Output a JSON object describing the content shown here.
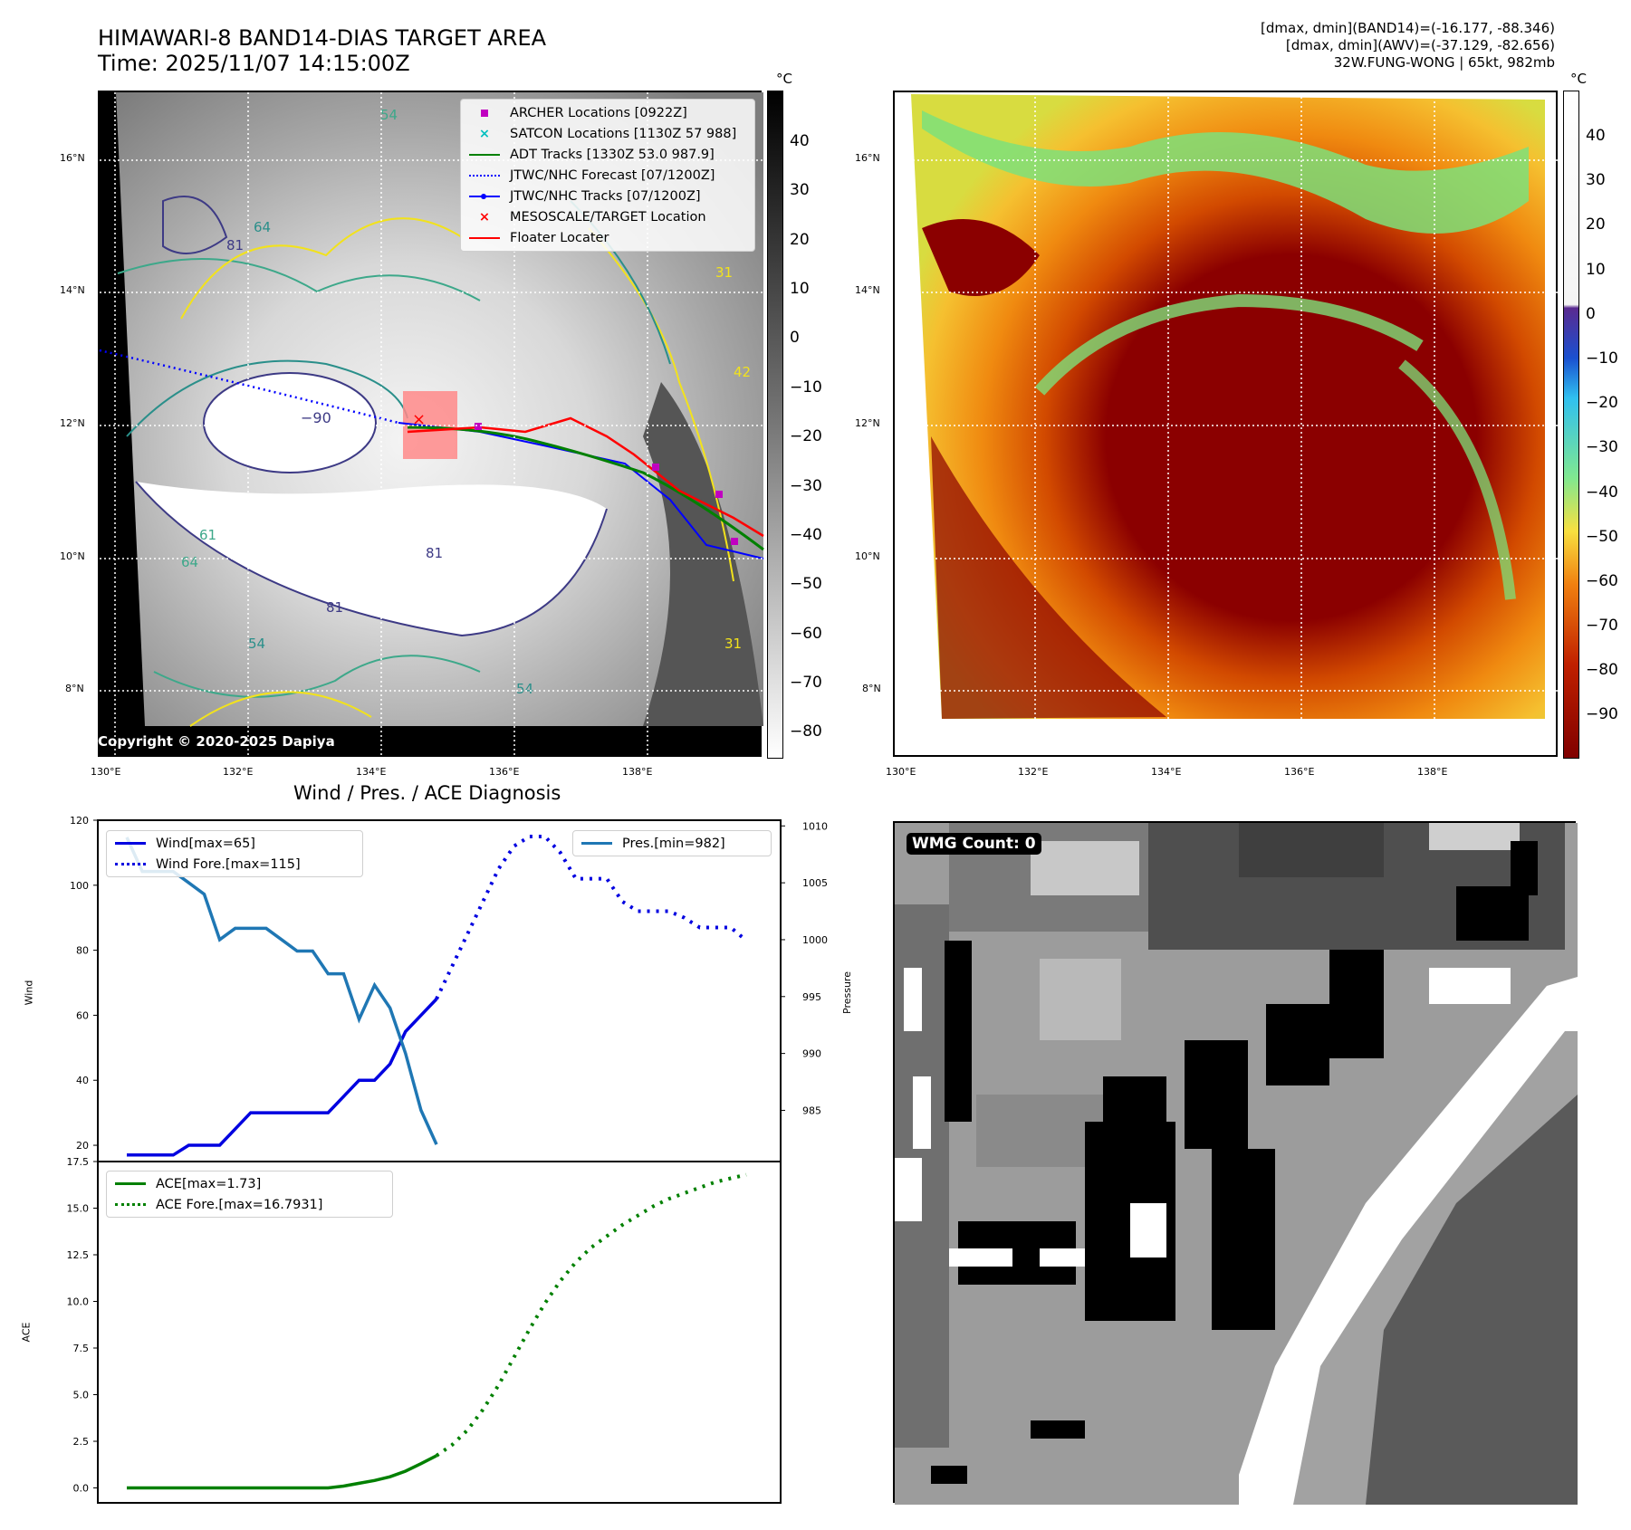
{
  "header": {
    "title_line1": "HIMAWARI-8 BAND14-DIAS TARGET AREA",
    "title_line2": "Time: 2025/11/07 14:15:00Z",
    "stats_line1": "[dmax, dmin](BAND14)=(-16.177, -88.346)",
    "stats_line2": "[dmax, dmin](AWV)=(-37.129, -82.656)",
    "stats_line3": "32W.FUNG-WONG | 65kt, 982mb"
  },
  "map_ir": {
    "lat_ticks": [
      "16°N",
      "14°N",
      "12°N",
      "10°N",
      "8°N"
    ],
    "lon_ticks": [
      "130°E",
      "132°E",
      "134°E",
      "136°E",
      "138°E"
    ],
    "colorbar_unit": "°C",
    "colorbar_ticks": [
      "40",
      "30",
      "20",
      "10",
      "0",
      "−10",
      "−20",
      "−30",
      "−40",
      "−50",
      "−60",
      "−70",
      "−80"
    ],
    "copyright": "Copyright © 2020-2025 Dapiya",
    "contour_labels": [
      "54",
      "64",
      "81",
      "31",
      "−90",
      "54",
      "61",
      "64",
      "81",
      "81",
      "31",
      "54",
      "42"
    ],
    "legend": [
      {
        "label": "ARCHER Locations [0922Z]",
        "color": "#c000c0",
        "marker": "square"
      },
      {
        "label": "SATCON Locations [1130Z 57 988]",
        "color": "#00bfbf",
        "marker": "x"
      },
      {
        "label": "ADT Tracks [1330Z 53.0 987.9]",
        "color": "#008000",
        "marker": "line"
      },
      {
        "label": "JTWC/NHC Forecast [07/1200Z]",
        "color": "#0000ff",
        "marker": "dotted"
      },
      {
        "label": "JTWC/NHC Tracks [07/1200Z]",
        "color": "#0000ff",
        "marker": "line-dot"
      },
      {
        "label": "MESOSCALE/TARGET Location",
        "color": "#ff0000",
        "marker": "x"
      },
      {
        "label": "Floater Locater",
        "color": "#ff0000",
        "marker": "line"
      }
    ]
  },
  "map_awv": {
    "lat_ticks": [
      "16°N",
      "14°N",
      "12°N",
      "10°N",
      "8°N"
    ],
    "lon_ticks": [
      "130°E",
      "132°E",
      "134°E",
      "136°E",
      "138°E"
    ],
    "colorbar_unit": "°C",
    "colorbar_ticks": [
      "40",
      "30",
      "20",
      "10",
      "0",
      "−10",
      "−20",
      "−30",
      "−40",
      "−50",
      "−60",
      "−70",
      "−80",
      "−90"
    ]
  },
  "wmg": {
    "label": "WMG Count: 0"
  },
  "colors": {
    "wind": "#0000e0",
    "pressure": "#1f77b4",
    "ace": "#008000",
    "track_red": "#ff0000"
  },
  "chart_data": [
    {
      "type": "line",
      "title": "Wind / Pres. / ACE Diagnosis",
      "ylabel": "Wind",
      "y2label": "Pressure",
      "ylim": [
        15,
        120
      ],
      "y2lim": [
        980.5,
        1010.5
      ],
      "yticks": [
        20,
        40,
        60,
        80,
        100,
        120
      ],
      "y2ticks": [
        985,
        990,
        995,
        1000,
        1005,
        1010
      ],
      "x": [
        0,
        1,
        2,
        3,
        4,
        5,
        6,
        7,
        8,
        9,
        10,
        11,
        12,
        13,
        14,
        15,
        16,
        17,
        18,
        19,
        20,
        21,
        22,
        23,
        24,
        25,
        26,
        27,
        28,
        29,
        30,
        31,
        32,
        33,
        34,
        35,
        36,
        37,
        38,
        39,
        40
      ],
      "series": [
        {
          "name": "Wind[max=65]",
          "axis": "left",
          "style": "solid",
          "color": "#0000e0",
          "points": [
            [
              0,
              17
            ],
            [
              1,
              17
            ],
            [
              2,
              17
            ],
            [
              3,
              17
            ],
            [
              4,
              20
            ],
            [
              5,
              20
            ],
            [
              6,
              20
            ],
            [
              7,
              25
            ],
            [
              8,
              30
            ],
            [
              9,
              30
            ],
            [
              10,
              30
            ],
            [
              11,
              30
            ],
            [
              12,
              30
            ],
            [
              13,
              30
            ],
            [
              14,
              35
            ],
            [
              15,
              40
            ],
            [
              16,
              40
            ],
            [
              17,
              45
            ],
            [
              18,
              55
            ],
            [
              19,
              60
            ],
            [
              20,
              65
            ]
          ]
        },
        {
          "name": "Wind Fore.[max=115]",
          "axis": "left",
          "style": "dotted",
          "color": "#0000e0",
          "points": [
            [
              20,
              65
            ],
            [
              21,
              75
            ],
            [
              22,
              85
            ],
            [
              23,
              95
            ],
            [
              24,
              105
            ],
            [
              25,
              112
            ],
            [
              26,
              115
            ],
            [
              27,
              115
            ],
            [
              28,
              110
            ],
            [
              29,
              102
            ],
            [
              30,
              102
            ],
            [
              31,
              102
            ],
            [
              32,
              95
            ],
            [
              33,
              92
            ],
            [
              34,
              92
            ],
            [
              35,
              92
            ],
            [
              36,
              90
            ],
            [
              37,
              87
            ],
            [
              38,
              87
            ],
            [
              39,
              87
            ],
            [
              40,
              83
            ]
          ]
        },
        {
          "name": "Pres.[min=982]",
          "axis": "right",
          "style": "solid",
          "color": "#1f77b4",
          "points": [
            [
              0,
              1009
            ],
            [
              1,
              1006
            ],
            [
              2,
              1006
            ],
            [
              3,
              1006
            ],
            [
              4,
              1005
            ],
            [
              5,
              1004
            ],
            [
              6,
              1000
            ],
            [
              7,
              1001
            ],
            [
              8,
              1001
            ],
            [
              9,
              1001
            ],
            [
              10,
              1000
            ],
            [
              11,
              999
            ],
            [
              12,
              999
            ],
            [
              13,
              997
            ],
            [
              14,
              997
            ],
            [
              15,
              993
            ],
            [
              16,
              996
            ],
            [
              17,
              994
            ],
            [
              18,
              990
            ],
            [
              19,
              985
            ],
            [
              20,
              982
            ]
          ]
        }
      ]
    },
    {
      "type": "line",
      "ylabel": "ACE",
      "ylim": [
        -0.8,
        17.5
      ],
      "yticks": [
        0.0,
        2.5,
        5.0,
        7.5,
        10.0,
        12.5,
        15.0,
        17.5
      ],
      "series": [
        {
          "name": "ACE[max=1.73]",
          "style": "solid",
          "color": "#008000",
          "points": [
            [
              0,
              0
            ],
            [
              2,
              0
            ],
            [
              4,
              0
            ],
            [
              6,
              0
            ],
            [
              8,
              0
            ],
            [
              10,
              0
            ],
            [
              12,
              0
            ],
            [
              13,
              0
            ],
            [
              14,
              0.1
            ],
            [
              15,
              0.25
            ],
            [
              16,
              0.4
            ],
            [
              17,
              0.6
            ],
            [
              18,
              0.9
            ],
            [
              19,
              1.3
            ],
            [
              20,
              1.73
            ]
          ]
        },
        {
          "name": "ACE Fore.[max=16.7931]",
          "style": "dotted",
          "color": "#008000",
          "points": [
            [
              20,
              1.73
            ],
            [
              21,
              2.3
            ],
            [
              22,
              3.1
            ],
            [
              23,
              4.2
            ],
            [
              24,
              5.5
            ],
            [
              25,
              7.0
            ],
            [
              26,
              8.5
            ],
            [
              27,
              9.9
            ],
            [
              28,
              11.1
            ],
            [
              29,
              12.1
            ],
            [
              30,
              12.9
            ],
            [
              31,
              13.5
            ],
            [
              32,
              14.1
            ],
            [
              33,
              14.6
            ],
            [
              34,
              15.1
            ],
            [
              35,
              15.5
            ],
            [
              36,
              15.8
            ],
            [
              37,
              16.1
            ],
            [
              38,
              16.4
            ],
            [
              39,
              16.6
            ],
            [
              40,
              16.79
            ]
          ]
        }
      ]
    }
  ]
}
